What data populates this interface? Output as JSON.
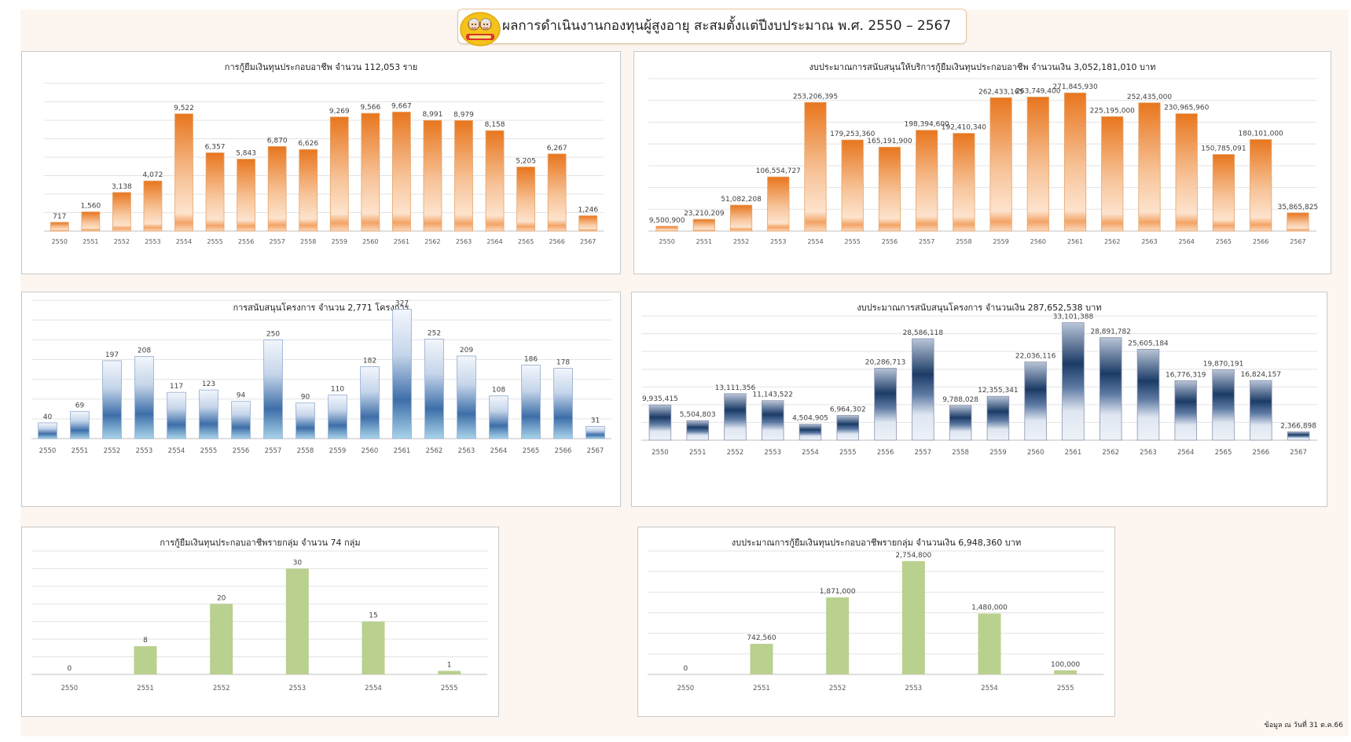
{
  "header": {
    "title": "ผลการดำเนินงานกองทุนผู้สูงอายุ สะสมตั้งแต่ปีงบประมาณ พ.ศ. 2550 – 2567"
  },
  "footer": {
    "note": "ข้อมูล ณ วันที่ 31  ต.ค.66"
  },
  "colors": {
    "orange": "#e8761e",
    "blue": "#2e5f9a",
    "navy": "#1b3b66",
    "green": "#b9d08f"
  },
  "chart_data": [
    {
      "type": "bar",
      "title": "การกู้ยืมเงินทุนประกอบอาชีพ  จำนวน 112,053  ราย",
      "categories": [
        "2550",
        "2551",
        "2552",
        "2553",
        "2554",
        "2555",
        "2556",
        "2557",
        "2558",
        "2559",
        "2560",
        "2561",
        "2562",
        "2563",
        "2564",
        "2565",
        "2566",
        "2567"
      ],
      "values": [
        717,
        1560,
        3138,
        4072,
        9522,
        6357,
        5843,
        6870,
        6626,
        9269,
        9566,
        9667,
        8991,
        8979,
        8158,
        5205,
        6267,
        1246
      ],
      "labels": [
        "717",
        "1,560",
        "3,138",
        "4,072",
        "9,522",
        "6,357",
        "5,843",
        "6,870",
        "6,626",
        "9,269",
        "9,566",
        "9,667",
        "8,991",
        "8,979",
        "8,158",
        "5,205",
        "6,267",
        "1,246"
      ],
      "ylim": [
        0,
        12000
      ],
      "gridlines": 8,
      "grid": true,
      "legend": "none"
    },
    {
      "type": "bar",
      "title": "งบประมาณการสนับสนุนให้บริการกู้ยืมเงินทุนประกอบอาชีพ  จำนวนเงิน 3,052,181,010  บาท",
      "categories": [
        "2550",
        "2551",
        "2552",
        "2553",
        "2554",
        "2555",
        "2556",
        "2557",
        "2558",
        "2559",
        "2560",
        "2561",
        "2562",
        "2563",
        "2564",
        "2565",
        "2566",
        "2567"
      ],
      "values": [
        9500900,
        23210209,
        51082208,
        106554727,
        253206395,
        179253360,
        165191900,
        198394600,
        192410340,
        262433165,
        263749400,
        271845930,
        225195000,
        252435000,
        230965960,
        150785091,
        180101000,
        35865825
      ],
      "labels": [
        "9,500,900",
        "23,210,209",
        "51,082,208",
        "106,554,727",
        "253,206,395",
        "179,253,360",
        "165,191,900",
        "198,394,600",
        "192,410,340",
        "262,433,165",
        "263,749,400",
        "271,845,930",
        "225,195,000",
        "252,435,000",
        "230,965,960",
        "150,785,091",
        "180,101,000",
        "35,865,825"
      ],
      "ylim": [
        0,
        300000000
      ],
      "gridlines": 7,
      "grid": true,
      "legend": "none"
    },
    {
      "type": "bar",
      "title": "การสนับสนุนโครงการ  จำนวน 2,771  โครงการ",
      "categories": [
        "2550",
        "2551",
        "2552",
        "2553",
        "2554",
        "2555",
        "2556",
        "2557",
        "2558",
        "2559",
        "2560",
        "2561",
        "2562",
        "2563",
        "2564",
        "2565",
        "2566",
        "2567"
      ],
      "values": [
        40,
        69,
        197,
        208,
        117,
        123,
        94,
        250,
        90,
        110,
        182,
        327,
        252,
        209,
        108,
        186,
        178,
        31
      ],
      "labels": [
        "40",
        "69",
        "197",
        "208",
        "117",
        "123",
        "94",
        "250",
        "90",
        "110",
        "182",
        "327",
        "252",
        "209",
        "108",
        "186",
        "178",
        "31"
      ],
      "ylim": [
        0,
        350
      ],
      "gridlines": 7,
      "grid": true,
      "legend": "none"
    },
    {
      "type": "bar",
      "title": "งบประมาณการสนับสนุนโครงการ  จำนวนเงิน 287,652,538  บาท",
      "categories": [
        "2550",
        "2551",
        "2552",
        "2553",
        "2554",
        "2555",
        "2556",
        "2557",
        "2558",
        "2559",
        "2560",
        "2561",
        "2562",
        "2563",
        "2564",
        "2565",
        "2566",
        "2567"
      ],
      "values": [
        9935415,
        5504803,
        13111356,
        11143522,
        4504905,
        6964302,
        20286713,
        28586118,
        9788028,
        12355341,
        22036116,
        33101388,
        28891782,
        25605184,
        16776319,
        19870191,
        16824157,
        2366898
      ],
      "labels": [
        "9,935,415",
        "5,504,803",
        "13,111,356",
        "11,143,522",
        "4,504,905",
        "6,964,302",
        "20,286,713",
        "28,586,118",
        "9,788,028",
        "12,355,341",
        "22,036,116",
        "33,101,388",
        "28,891,782",
        "25,605,184",
        "16,776,319",
        "19,870,191",
        "16,824,157",
        "2,366,898"
      ],
      "ylim": [
        0,
        35000000
      ],
      "gridlines": 7,
      "grid": true,
      "legend": "none"
    },
    {
      "type": "bar",
      "title": "การกู้ยืมเงินทุนประกอบอาชีพรายกลุ่ม  จำนวน  74 กลุ่ม",
      "categories": [
        "2550",
        "2551",
        "2552",
        "2553",
        "2554",
        "2555"
      ],
      "values": [
        0,
        8,
        20,
        30,
        15,
        1
      ],
      "labels": [
        "0",
        "8",
        "20",
        "30",
        "15",
        "1"
      ],
      "ylim": [
        0,
        35
      ],
      "gridlines": 7,
      "grid": true,
      "legend": "none"
    },
    {
      "type": "bar",
      "title": "งบประมาณการกู้ยืมเงินทุนประกอบอาชีพรายกลุ่ม  จำนวนเงิน 6,948,360  บาท",
      "categories": [
        "2550",
        "2551",
        "2552",
        "2553",
        "2554",
        "2555"
      ],
      "values": [
        0,
        742560,
        1871000,
        2754800,
        1480000,
        100000
      ],
      "labels": [
        "0",
        "742,560",
        "1,871,000",
        "2,754,800",
        "1,480,000",
        "100,000"
      ],
      "ylim": [
        0,
        3000000
      ],
      "gridlines": 6,
      "grid": true,
      "legend": "none"
    }
  ]
}
